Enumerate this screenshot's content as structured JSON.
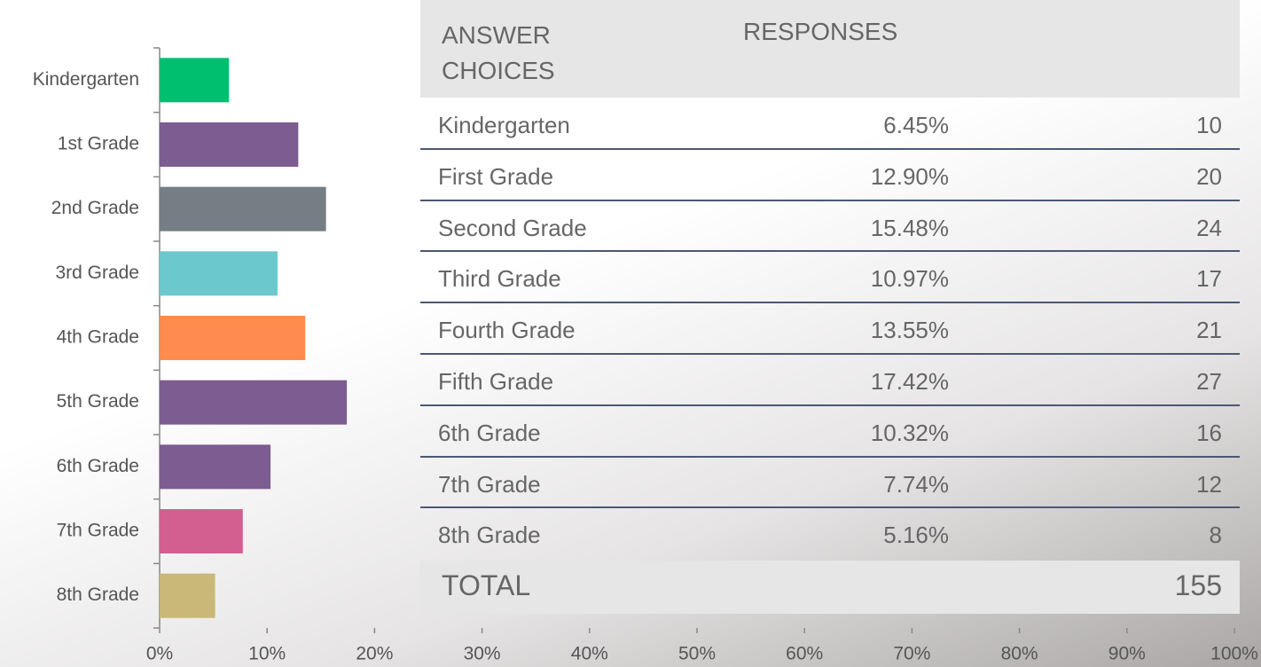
{
  "chart_data": {
    "type": "hbar",
    "categories": [
      "Kindergarten",
      "1st Grade",
      "2nd Grade",
      "3rd Grade",
      "4th Grade",
      "5th Grade",
      "6th Grade",
      "7th Grade",
      "8th Grade"
    ],
    "values": [
      6.45,
      12.9,
      15.48,
      10.97,
      13.55,
      17.42,
      10.32,
      7.74,
      5.16
    ],
    "colors": [
      "#00bf6f",
      "#7d5c91",
      "#757d85",
      "#6bc8cd",
      "#ff8b4f",
      "#7d5c91",
      "#7d5c91",
      "#d25f90",
      "#c9b877"
    ],
    "xlim": [
      0,
      100
    ],
    "xticks": [
      {
        "value": 0,
        "label": "0%"
      },
      {
        "value": 10,
        "label": "10%"
      },
      {
        "value": 20,
        "label": "20%"
      },
      {
        "value": 30,
        "label": "30%"
      },
      {
        "value": 40,
        "label": "40%"
      },
      {
        "value": 50,
        "label": "50%"
      },
      {
        "value": 60,
        "label": "60%"
      },
      {
        "value": 70,
        "label": "70%"
      },
      {
        "value": 80,
        "label": "80%"
      },
      {
        "value": 90,
        "label": "90%"
      },
      {
        "value": 100,
        "label": "100%"
      }
    ]
  },
  "table": {
    "header": [
      "ANSWER CHOICES",
      "RESPONSES"
    ],
    "rows": [
      [
        "Kindergarten",
        "6.45%",
        "10"
      ],
      [
        "First Grade",
        "12.90%",
        "20"
      ],
      [
        "Second Grade",
        "15.48%",
        "24"
      ],
      [
        "Third Grade",
        "10.97%",
        "17"
      ],
      [
        "Fourth Grade",
        "13.55%",
        "21"
      ],
      [
        "Fifth Grade",
        "17.42%",
        "27"
      ],
      [
        "6th Grade",
        "10.32%",
        "16"
      ],
      [
        "7th Grade",
        "7.74%",
        "12"
      ],
      [
        "8th Grade",
        "5.16%",
        "8"
      ]
    ],
    "total": [
      "TOTAL",
      "155"
    ]
  }
}
